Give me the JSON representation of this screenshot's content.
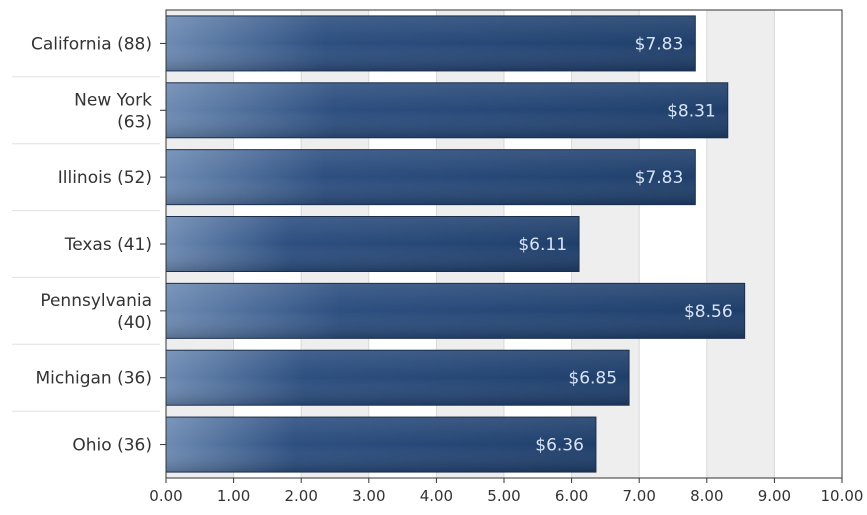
{
  "chart_data": {
    "type": "bar",
    "orientation": "horizontal",
    "categories": [
      "California (88)",
      "New York (63)",
      "Illinois (52)",
      "Texas (41)",
      "Pennsylvania (40)",
      "Michigan (36)",
      "Ohio (36)"
    ],
    "category_lines": [
      [
        "California (88)"
      ],
      [
        "New York",
        "(63)"
      ],
      [
        "Illinois (52)"
      ],
      [
        "Texas (41)"
      ],
      [
        "Pennsylvania",
        "(40)"
      ],
      [
        "Michigan (36)"
      ],
      [
        "Ohio (36)"
      ]
    ],
    "values": [
      7.83,
      8.31,
      7.83,
      6.11,
      8.56,
      6.85,
      6.36
    ],
    "data_labels": [
      "$7.83",
      "$8.31",
      "$7.83",
      "$6.11",
      "$8.56",
      "$6.85",
      "$6.36"
    ],
    "xlim": [
      0,
      10
    ],
    "xticks": [
      "0.00",
      "1.00",
      "2.00",
      "3.00",
      "4.00",
      "5.00",
      "6.00",
      "7.00",
      "8.00",
      "9.00",
      "10.00"
    ],
    "grid": true,
    "alternating_bands": true,
    "colors": {
      "bar_dark": "#1f3f6b",
      "bar_light": "#5a7aa3",
      "bar_edge": "#1a2f4d",
      "band": "#eeeeee",
      "grid": "#d8d8d8",
      "axis": "#333333",
      "label_text": "#333333",
      "value_text": "#d9e3f2"
    }
  }
}
